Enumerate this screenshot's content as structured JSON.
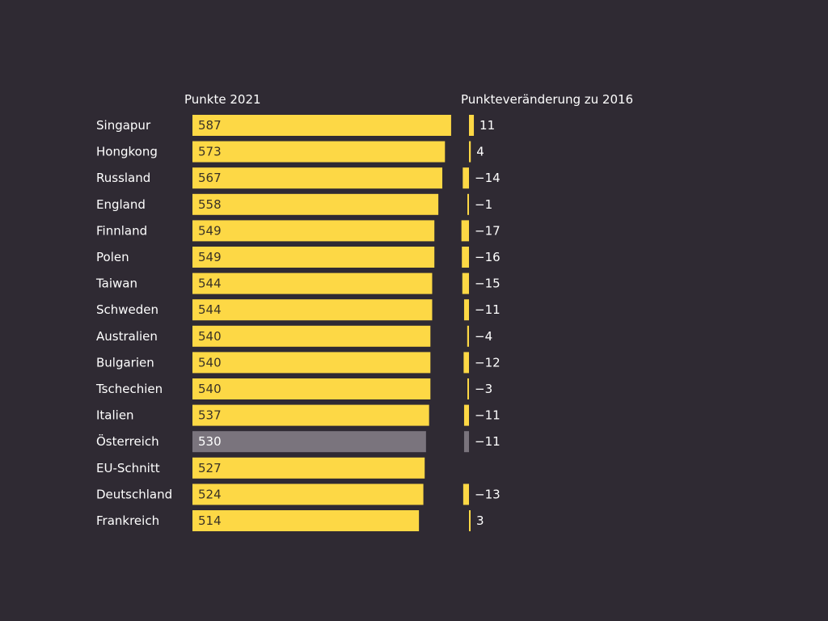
{
  "chart_data": {
    "type": "bar",
    "headers": {
      "points": "Punkte 2021",
      "change": "Punkteveränderung zu 2016"
    },
    "categories": [
      "Singapur",
      "Hongkong",
      "Russland",
      "England",
      "Finnland",
      "Polen",
      "Taiwan",
      "Schweden",
      "Australien",
      "Bulgarien",
      "Tschechien",
      "Italien",
      "Österreich",
      "EU-Schnitt",
      "Deutschland",
      "Frankreich"
    ],
    "series": [
      {
        "name": "Punkte 2021",
        "values": [
          587,
          573,
          567,
          558,
          549,
          549,
          544,
          544,
          540,
          540,
          540,
          537,
          530,
          527,
          524,
          514
        ]
      },
      {
        "name": "Punkteveränderung zu 2016",
        "values": [
          11,
          4,
          -14,
          -1,
          -17,
          -16,
          -15,
          -11,
          -4,
          -12,
          -3,
          -11,
          -11,
          null,
          -13,
          3
        ]
      }
    ],
    "highlight_category": "Österreich",
    "colors": {
      "background": "#2f2a33",
      "bar": "#fdd845",
      "highlight": "#7a747d",
      "text": "#ffffff",
      "value_text_on_bar": "#3a3226",
      "value_text_on_highlight": "#ffffff"
    }
  }
}
